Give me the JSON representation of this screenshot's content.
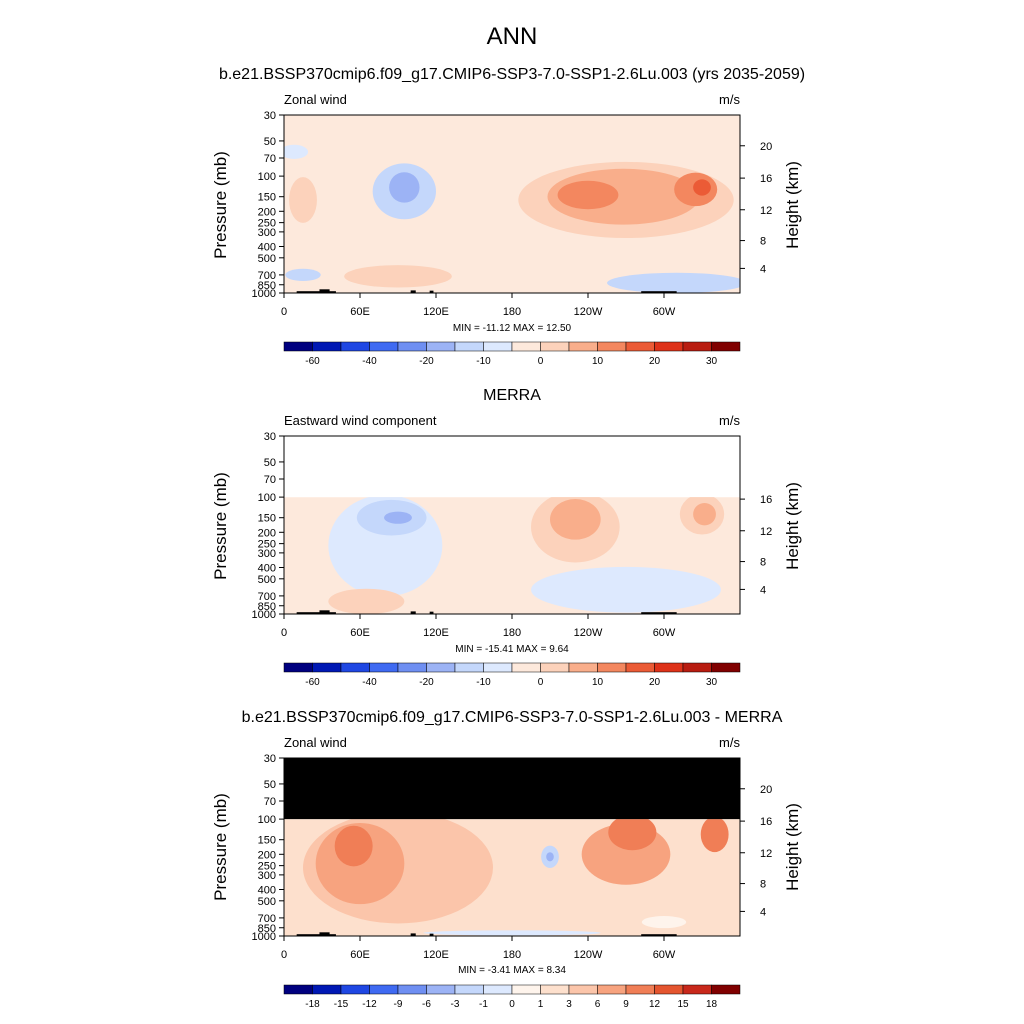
{
  "figure_title": "ANN",
  "colors": {
    "main_scale": [
      "#00007f",
      "#0018b4",
      "#1f47e3",
      "#3f6af2",
      "#6f8ff2",
      "#9cb3f5",
      "#c4d7fb",
      "#dde9fe",
      "#fde9dc",
      "#fcd2bb",
      "#f9ae8b",
      "#f3875f",
      "#eb5b36",
      "#de3219",
      "#b81c10",
      "#800000"
    ],
    "diff_scale": [
      "#00007f",
      "#0018b4",
      "#1f47e3",
      "#3f6af2",
      "#6f8ff2",
      "#9cb3f5",
      "#c4d7fb",
      "#dde9fe",
      "#fef4ec",
      "#fde0cd",
      "#fbc5aa",
      "#f7a37f",
      "#f07e56",
      "#e4552f",
      "#c8281b",
      "#800000"
    ],
    "missing": "#000000",
    "terrain": "#000000"
  },
  "chart_data": [
    {
      "type": "heatmap",
      "title": "b.e21.BSSP370cmip6.f09_g17.CMIP6-SSP3-7.0-SSP1-2.6Lu.003 (yrs 2035-2059)",
      "left_label": "Zonal wind",
      "units": "m/s",
      "ylabel": "Pressure (mb)",
      "ylabel_right": "Height (km)",
      "x_ticks": [
        "0",
        "60E",
        "120E",
        "180",
        "120W",
        "60W"
      ],
      "y_ticks": [
        "30",
        "50",
        "70",
        "100",
        "150",
        "200",
        "250",
        "300",
        "400",
        "500",
        "700",
        "850",
        "1000"
      ],
      "right_ticks": [
        "4",
        "8",
        "12",
        "16",
        "20"
      ],
      "stats": "MIN = -11.12  MAX =  12.50",
      "colorbar_labels": [
        "-60",
        "-40",
        "-20",
        "-10",
        "0",
        "10",
        "20",
        "30"
      ],
      "data_top_mb": 30,
      "base_class": 8,
      "regions": [
        {
          "cls": 9,
          "lon": 270,
          "lon_w": 170,
          "p": 160,
          "p_w": 0.75
        },
        {
          "cls": 10,
          "lon": 268,
          "lon_w": 120,
          "p": 150,
          "p_w": 0.55
        },
        {
          "cls": 11,
          "lon": 240,
          "lon_w": 48,
          "p": 145,
          "p_w": 0.28
        },
        {
          "cls": 11,
          "lon": 325,
          "lon_w": 34,
          "p": 130,
          "p_w": 0.33
        },
        {
          "cls": 12,
          "lon": 330,
          "lon_w": 14,
          "p": 125,
          "p_w": 0.16
        },
        {
          "cls": 6,
          "lon": 95,
          "lon_w": 50,
          "p": 135,
          "p_w": 0.55
        },
        {
          "cls": 5,
          "lon": 95,
          "lon_w": 24,
          "p": 125,
          "p_w": 0.3
        },
        {
          "cls": 9,
          "lon": 90,
          "lon_w": 85,
          "p": 720,
          "p_w": 0.22
        },
        {
          "cls": 9,
          "lon": 15,
          "lon_w": 22,
          "p": 160,
          "p_w": 0.45
        },
        {
          "cls": 7,
          "lon": 8,
          "lon_w": 22,
          "p": 62,
          "p_w": 0.14
        },
        {
          "cls": 6,
          "lon": 310,
          "lon_w": 110,
          "p": 820,
          "p_w": 0.2
        },
        {
          "cls": 6,
          "lon": 15,
          "lon_w": 28,
          "p": 700,
          "p_w": 0.12
        }
      ]
    },
    {
      "type": "heatmap",
      "title": "MERRA",
      "left_label": "Eastward wind component",
      "units": "m/s",
      "ylabel": "Pressure (mb)",
      "ylabel_right": "Height (km)",
      "x_ticks": [
        "0",
        "60E",
        "120E",
        "180",
        "120W",
        "60W"
      ],
      "y_ticks": [
        "30",
        "50",
        "70",
        "100",
        "150",
        "200",
        "250",
        "300",
        "400",
        "500",
        "700",
        "850",
        "1000"
      ],
      "right_ticks": [
        "4",
        "8",
        "12",
        "16"
      ],
      "stats": "MIN = -15.41  MAX =   9.64",
      "colorbar_labels": [
        "-60",
        "-40",
        "-20",
        "-10",
        "0",
        "10",
        "20",
        "30"
      ],
      "data_top_mb": 100,
      "base_class": 8,
      "regions": [
        {
          "cls": 7,
          "lon": 80,
          "lon_w": 90,
          "p": 260,
          "p_w": 1.0
        },
        {
          "cls": 7,
          "lon": 270,
          "lon_w": 150,
          "p": 620,
          "p_w": 0.45
        },
        {
          "cls": 6,
          "lon": 85,
          "lon_w": 55,
          "p": 150,
          "p_w": 0.35
        },
        {
          "cls": 5,
          "lon": 90,
          "lon_w": 22,
          "p": 150,
          "p_w": 0.12
        },
        {
          "cls": 9,
          "lon": 230,
          "lon_w": 70,
          "p": 180,
          "p_w": 0.7
        },
        {
          "cls": 10,
          "lon": 230,
          "lon_w": 40,
          "p": 155,
          "p_w": 0.4
        },
        {
          "cls": 9,
          "lon": 330,
          "lon_w": 35,
          "p": 140,
          "p_w": 0.4
        },
        {
          "cls": 10,
          "lon": 332,
          "lon_w": 18,
          "p": 140,
          "p_w": 0.22
        },
        {
          "cls": 9,
          "lon": 65,
          "lon_w": 60,
          "p": 780,
          "p_w": 0.25
        }
      ]
    },
    {
      "type": "heatmap",
      "title": "b.e21.BSSP370cmip6.f09_g17.CMIP6-SSP3-7.0-SSP1-2.6Lu.003 - MERRA",
      "left_label": "Zonal wind",
      "units": "m/s",
      "ylabel": "Pressure (mb)",
      "ylabel_right": "Height (km)",
      "x_ticks": [
        "0",
        "60E",
        "120E",
        "180",
        "120W",
        "60W"
      ],
      "y_ticks": [
        "30",
        "50",
        "70",
        "100",
        "150",
        "200",
        "250",
        "300",
        "400",
        "500",
        "700",
        "850",
        "1000"
      ],
      "right_ticks": [
        "4",
        "8",
        "12",
        "16",
        "20"
      ],
      "stats": "MIN =  -3.41  MAX =  8.34",
      "colorbar_labels": [
        "-18",
        "-15",
        "-12",
        "-9",
        "-6",
        "-3",
        "-1",
        "0",
        "1",
        "3",
        "6",
        "9",
        "12",
        "15",
        "18"
      ],
      "data_top_mb": 100,
      "missing_above_mb": 100,
      "base_class": 9,
      "regions": [
        {
          "cls": 10,
          "lon": 90,
          "lon_w": 150,
          "p": 260,
          "p_w": 1.1
        },
        {
          "cls": 11,
          "lon": 60,
          "lon_w": 70,
          "p": 240,
          "p_w": 0.8
        },
        {
          "cls": 12,
          "lon": 55,
          "lon_w": 30,
          "p": 170,
          "p_w": 0.4
        },
        {
          "cls": 11,
          "lon": 270,
          "lon_w": 70,
          "p": 200,
          "p_w": 0.6
        },
        {
          "cls": 12,
          "lon": 275,
          "lon_w": 38,
          "p": 130,
          "p_w": 0.35
        },
        {
          "cls": 12,
          "lon": 340,
          "lon_w": 22,
          "p": 135,
          "p_w": 0.35
        },
        {
          "cls": 6,
          "lon": 210,
          "lon_w": 14,
          "p": 210,
          "p_w": 0.22
        },
        {
          "cls": 5,
          "lon": 210,
          "lon_w": 6,
          "p": 210,
          "p_w": 0.09
        },
        {
          "cls": 7,
          "lon": 180,
          "lon_w": 140,
          "p": 940,
          "p_w": 0.05
        },
        {
          "cls": 8,
          "lon": 300,
          "lon_w": 35,
          "p": 760,
          "p_w": 0.12
        }
      ]
    }
  ]
}
